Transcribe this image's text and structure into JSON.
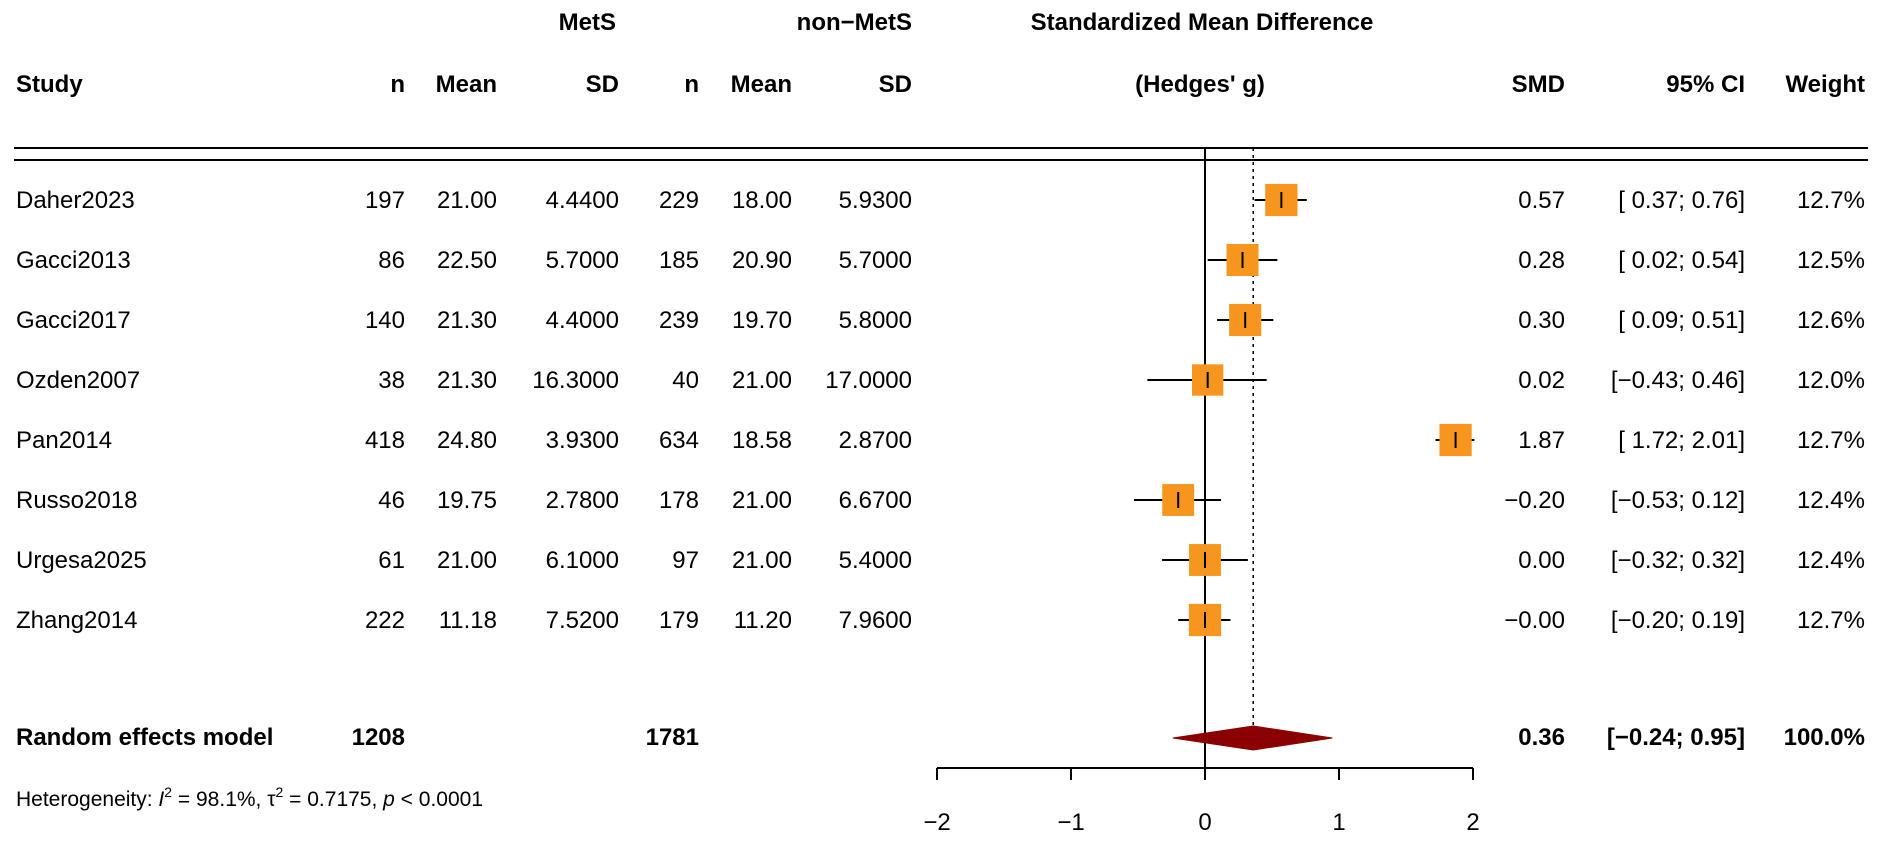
{
  "chart_data": {
    "type": "forest",
    "group_headers": {
      "mets": "MetS",
      "nonmets": "non−MetS"
    },
    "plot_title_line1": "Standardized Mean Difference",
    "plot_title_line2": "(Hedges' g)",
    "columns": {
      "study": "Study",
      "n1": "n",
      "mean1": "Mean",
      "sd1": "SD",
      "n2": "n",
      "mean2": "Mean",
      "sd2": "SD",
      "smd": "SMD",
      "ci": "95% CI",
      "weight": "Weight"
    },
    "studies": [
      {
        "name": "Daher2023",
        "n1": "197",
        "mean1": "21.00",
        "sd1": "4.4400",
        "n2": "229",
        "mean2": "18.00",
        "sd2": "5.9300",
        "smd": 0.57,
        "lower": 0.37,
        "upper": 0.76,
        "smd_text": "0.57",
        "ci_text": "[ 0.37; 0.76]",
        "weight_text": "12.7%",
        "weight": 12.7
      },
      {
        "name": "Gacci2013",
        "n1": "86",
        "mean1": "22.50",
        "sd1": "5.7000",
        "n2": "185",
        "mean2": "20.90",
        "sd2": "5.7000",
        "smd": 0.28,
        "lower": 0.02,
        "upper": 0.54,
        "smd_text": "0.28",
        "ci_text": "[ 0.02; 0.54]",
        "weight_text": "12.5%",
        "weight": 12.5
      },
      {
        "name": "Gacci2017",
        "n1": "140",
        "mean1": "21.30",
        "sd1": "4.4000",
        "n2": "239",
        "mean2": "19.70",
        "sd2": "5.8000",
        "smd": 0.3,
        "lower": 0.09,
        "upper": 0.51,
        "smd_text": "0.30",
        "ci_text": "[ 0.09; 0.51]",
        "weight_text": "12.6%",
        "weight": 12.6
      },
      {
        "name": "Ozden2007",
        "n1": "38",
        "mean1": "21.30",
        "sd1": "16.3000",
        "n2": "40",
        "mean2": "21.00",
        "sd2": "17.0000",
        "smd": 0.02,
        "lower": -0.43,
        "upper": 0.46,
        "smd_text": "0.02",
        "ci_text": "[−0.43; 0.46]",
        "weight_text": "12.0%",
        "weight": 12.0
      },
      {
        "name": "Pan2014",
        "n1": "418",
        "mean1": "24.80",
        "sd1": "3.9300",
        "n2": "634",
        "mean2": "18.58",
        "sd2": "2.8700",
        "smd": 1.87,
        "lower": 1.72,
        "upper": 2.01,
        "smd_text": "1.87",
        "ci_text": "[ 1.72; 2.01]",
        "weight_text": "12.7%",
        "weight": 12.7
      },
      {
        "name": "Russo2018",
        "n1": "46",
        "mean1": "19.75",
        "sd1": "2.7800",
        "n2": "178",
        "mean2": "21.00",
        "sd2": "6.6700",
        "smd": -0.2,
        "lower": -0.53,
        "upper": 0.12,
        "smd_text": "−0.20",
        "ci_text": "[−0.53; 0.12]",
        "weight_text": "12.4%",
        "weight": 12.4
      },
      {
        "name": "Urgesa2025",
        "n1": "61",
        "mean1": "21.00",
        "sd1": "6.1000",
        "n2": "97",
        "mean2": "21.00",
        "sd2": "5.4000",
        "smd": 0.0,
        "lower": -0.32,
        "upper": 0.32,
        "smd_text": "0.00",
        "ci_text": "[−0.32; 0.32]",
        "weight_text": "12.4%",
        "weight": 12.4
      },
      {
        "name": "Zhang2014",
        "n1": "222",
        "mean1": "11.18",
        "sd1": "7.5200",
        "n2": "179",
        "mean2": "11.20",
        "sd2": "7.9600",
        "smd": 0.0,
        "lower": -0.2,
        "upper": 0.19,
        "smd_text": "−0.00",
        "ci_text": "[−0.20; 0.19]",
        "weight_text": "12.7%",
        "weight": 12.7
      }
    ],
    "pooled": {
      "label": "Random effects model",
      "n1": "1208",
      "n2": "1781",
      "smd": 0.36,
      "lower": -0.24,
      "upper": 0.95,
      "smd_text": "0.36",
      "ci_text": "[−0.24; 0.95]",
      "weight_text": "100.0%"
    },
    "heterogeneity": {
      "prefix": "Heterogeneity: ",
      "i2_symbol": "I",
      "i2_value": " = 98.1%, ",
      "tau_symbol": "τ",
      "tau_value": " = 0.7175, ",
      "p_symbol": "p",
      "p_value": " < 0.0001"
    },
    "x_axis": {
      "min": -2,
      "max": 2,
      "ticks": [
        -2,
        -1,
        0,
        1,
        2
      ],
      "tick_labels": [
        "−2",
        "−1",
        "0",
        "1",
        "2"
      ]
    },
    "reference_line": 0,
    "pooled_line": 0.36,
    "colors": {
      "square": "#f7961e",
      "square_border": "#f7961e",
      "diamond": "#8b0000",
      "line": "#000000"
    }
  }
}
